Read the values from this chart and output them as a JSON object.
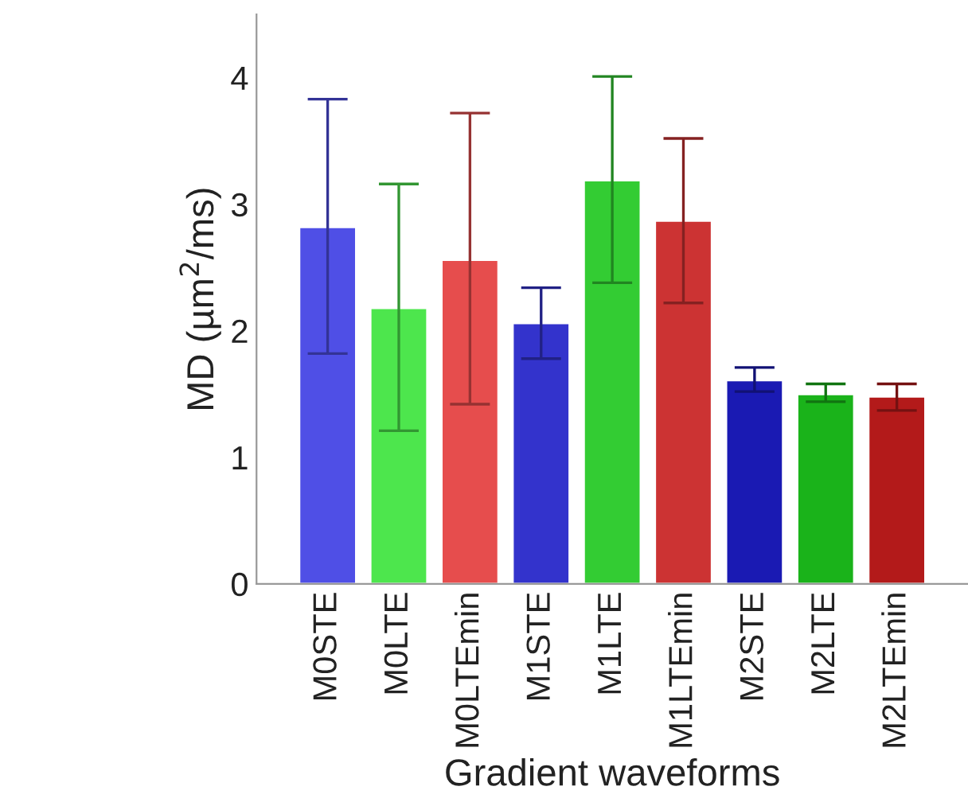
{
  "chart_data": {
    "type": "bar",
    "xlabel": "Gradient waveforms",
    "ylabel": "MD (µm$^{2}$/ms)",
    "categories": [
      "M0STE",
      "M0LTE",
      "M0LTEmin",
      "M1STE",
      "M1LTE",
      "M1LTEmin",
      "M2STE",
      "M2LTE",
      "M2LTEmin"
    ],
    "values": [
      2.82,
      2.18,
      2.56,
      2.06,
      3.19,
      2.87,
      1.61,
      1.5,
      1.48
    ],
    "errors": [
      [
        1.82,
        3.83
      ],
      [
        1.21,
        3.16
      ],
      [
        1.42,
        3.72
      ],
      [
        1.78,
        2.34
      ],
      [
        2.38,
        4.01
      ],
      [
        2.22,
        3.52
      ],
      [
        1.52,
        1.71
      ],
      [
        1.44,
        1.58
      ],
      [
        1.37,
        1.58
      ]
    ],
    "colors": [
      "#4f4fe6",
      "#4de64d",
      "#e64d4d",
      "#3333cc",
      "#33cc33",
      "#cc3333",
      "#1a1ab3",
      "#1ab31a",
      "#b31a1a"
    ],
    "ylim": [
      0,
      4.5
    ],
    "yticks": [
      0,
      1,
      2,
      3,
      4
    ],
    "grid": false,
    "legend": false
  }
}
